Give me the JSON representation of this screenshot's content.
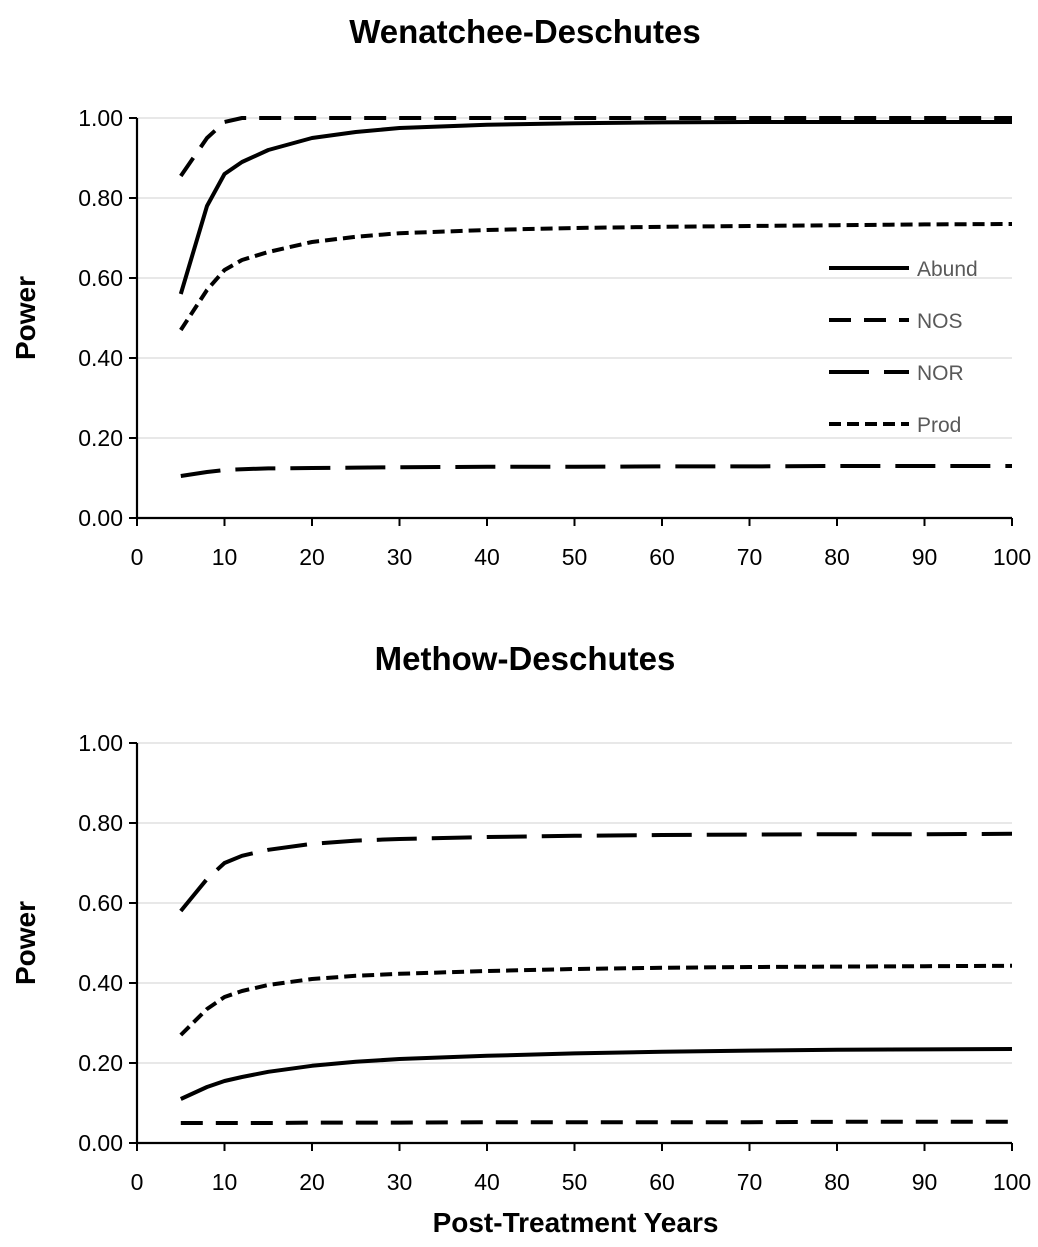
{
  "chart_data": [
    {
      "type": "line",
      "title": "Wenatchee-Deschutes",
      "xlabel": "",
      "ylabel": "Power",
      "xlim": [
        0,
        100
      ],
      "ylim": [
        0,
        1
      ],
      "x_ticks": [
        "0",
        "10",
        "20",
        "30",
        "40",
        "50",
        "60",
        "70",
        "80",
        "90",
        "100"
      ],
      "y_ticks": [
        "0.00",
        "0.20",
        "0.40",
        "0.60",
        "0.80",
        "1.00"
      ],
      "grid": "horizontal",
      "legend": "right",
      "x": [
        5,
        8,
        10,
        12,
        15,
        20,
        25,
        30,
        40,
        50,
        60,
        70,
        80,
        90,
        100
      ],
      "series": [
        {
          "name": "Abund",
          "style": "solid",
          "values": [
            0.56,
            0.78,
            0.86,
            0.89,
            0.92,
            0.95,
            0.965,
            0.975,
            0.983,
            0.987,
            0.989,
            0.99,
            0.99,
            0.99,
            0.99
          ]
        },
        {
          "name": "NOS",
          "style": "dash",
          "values": [
            0.855,
            0.95,
            0.99,
            1.0,
            1.0,
            1.0,
            1.0,
            1.0,
            1.0,
            1.0,
            1.0,
            1.0,
            1.0,
            1.0,
            1.0
          ]
        },
        {
          "name": "NOR",
          "style": "longdash",
          "values": [
            0.105,
            0.115,
            0.12,
            0.122,
            0.124,
            0.125,
            0.126,
            0.127,
            0.128,
            0.128,
            0.129,
            0.129,
            0.13,
            0.13,
            0.13
          ]
        },
        {
          "name": "Prod",
          "style": "shortdash",
          "values": [
            0.47,
            0.57,
            0.62,
            0.645,
            0.665,
            0.69,
            0.703,
            0.712,
            0.72,
            0.725,
            0.728,
            0.73,
            0.732,
            0.734,
            0.735
          ]
        }
      ]
    },
    {
      "type": "line",
      "title": "Methow-Deschutes",
      "xlabel": "Post-Treatment Years",
      "ylabel": "Power",
      "xlim": [
        0,
        100
      ],
      "ylim": [
        0,
        1
      ],
      "x_ticks": [
        "0",
        "10",
        "20",
        "30",
        "40",
        "50",
        "60",
        "70",
        "80",
        "90",
        "100"
      ],
      "y_ticks": [
        "0.00",
        "0.20",
        "0.40",
        "0.60",
        "0.80",
        "1.00"
      ],
      "grid": "horizontal",
      "legend": "none",
      "x": [
        5,
        8,
        10,
        12,
        15,
        20,
        25,
        30,
        40,
        50,
        60,
        70,
        80,
        90,
        100
      ],
      "series": [
        {
          "style": "solid",
          "values": [
            0.11,
            0.14,
            0.155,
            0.165,
            0.178,
            0.193,
            0.203,
            0.21,
            0.218,
            0.224,
            0.228,
            0.231,
            0.233,
            0.234,
            0.235
          ]
        },
        {
          "style": "dash",
          "values": [
            0.05,
            0.05,
            0.05,
            0.05,
            0.05,
            0.051,
            0.051,
            0.051,
            0.052,
            0.052,
            0.052,
            0.052,
            0.053,
            0.053,
            0.053
          ]
        },
        {
          "style": "longdash",
          "values": [
            0.58,
            0.66,
            0.7,
            0.718,
            0.733,
            0.748,
            0.756,
            0.76,
            0.765,
            0.768,
            0.77,
            0.771,
            0.772,
            0.772,
            0.773
          ]
        },
        {
          "style": "shortdash",
          "values": [
            0.27,
            0.335,
            0.365,
            0.38,
            0.395,
            0.41,
            0.418,
            0.423,
            0.43,
            0.435,
            0.438,
            0.44,
            0.441,
            0.442,
            0.443
          ]
        }
      ]
    }
  ]
}
